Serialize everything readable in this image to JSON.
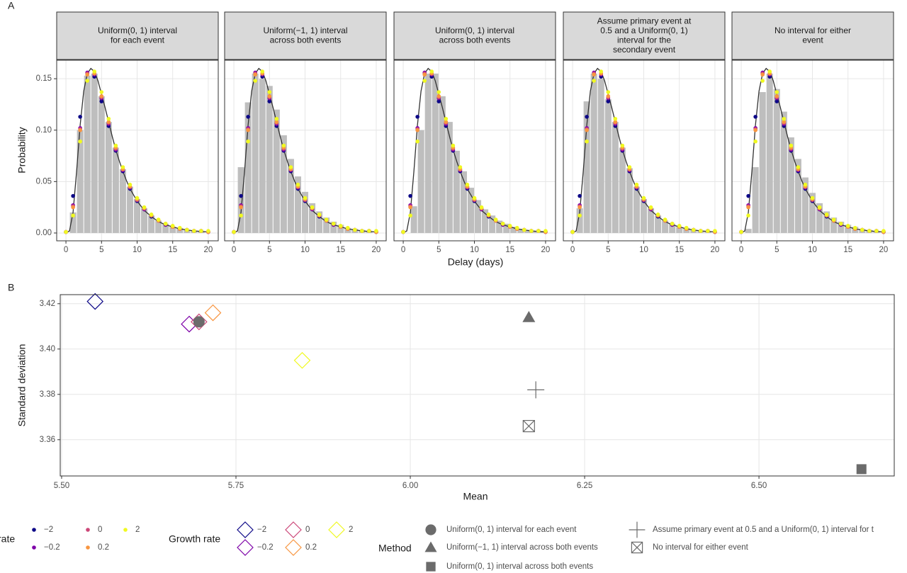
{
  "chart_data": [
    {
      "type": "facet_bar",
      "panel_label": "A",
      "ylabel": "Probability",
      "xlabel": "Delay (days)",
      "xlim": [
        -1.3,
        21.4
      ],
      "xticks": [
        0,
        5,
        10,
        15,
        20
      ],
      "ylim": [
        -0.0076,
        0.168
      ],
      "yticks": [
        {
          "value": 0,
          "label": "0.00"
        },
        0.05,
        {
          "value": 0.1,
          "label": "0.10"
        },
        0.15
      ],
      "grid": true,
      "bar_color": "#bebebe",
      "line_color": "#333333",
      "density_x": [
        0,
        0.5,
        1,
        1.5,
        2,
        2.5,
        3,
        3.5,
        4,
        4.5,
        5,
        5.5,
        6,
        6.5,
        7,
        7.5,
        8,
        8.5,
        9,
        9.5,
        10,
        11,
        12,
        13,
        14,
        15,
        16,
        17,
        18,
        19,
        20
      ],
      "density_values": [
        0,
        0.002,
        0.02,
        0.06,
        0.105,
        0.138,
        0.155,
        0.16,
        0.157,
        0.148,
        0.135,
        0.122,
        0.108,
        0.094,
        0.081,
        0.07,
        0.06,
        0.051,
        0.043,
        0.037,
        0.031,
        0.022,
        0.016,
        0.011,
        0.008,
        0.006,
        0.004,
        0.003,
        0.002,
        0.0015,
        0.001
      ],
      "point_x": [
        0,
        1,
        2,
        3,
        4,
        5,
        6,
        7,
        8,
        9,
        10,
        11,
        12,
        13,
        14,
        15,
        16,
        17,
        18,
        19,
        20
      ],
      "legend_title": "rate",
      "series": [
        {
          "name": "−2",
          "color": "#0d0887",
          "values": [
            0.001,
            0.036,
            0.113,
            0.155,
            0.152,
            0.128,
            0.104,
            0.08,
            0.06,
            0.043,
            0.031,
            0.023,
            0.016,
            0.012,
            0.008,
            0.006,
            0.004,
            0.003,
            0.002,
            0.002,
            0.001
          ]
        },
        {
          "name": "−0.2",
          "color": "#7e03a8",
          "values": [
            0.001,
            0.027,
            0.102,
            0.156,
            0.154,
            0.131,
            0.106,
            0.081,
            0.061,
            0.044,
            0.032,
            0.023,
            0.017,
            0.012,
            0.008,
            0.006,
            0.004,
            0.003,
            0.002,
            0.002,
            0.001
          ]
        },
        {
          "name": "0",
          "color": "#cc4778",
          "values": [
            0.001,
            0.026,
            0.101,
            0.155,
            0.155,
            0.132,
            0.107,
            0.082,
            0.062,
            0.045,
            0.032,
            0.024,
            0.017,
            0.012,
            0.009,
            0.006,
            0.004,
            0.003,
            0.002,
            0.002,
            0.001
          ]
        },
        {
          "name": "0.2",
          "color": "#f89540",
          "values": [
            0.001,
            0.025,
            0.1,
            0.154,
            0.155,
            0.133,
            0.108,
            0.083,
            0.062,
            0.045,
            0.033,
            0.024,
            0.017,
            0.012,
            0.009,
            0.006,
            0.004,
            0.003,
            0.002,
            0.002,
            0.001
          ]
        },
        {
          "name": "2",
          "color": "#f0f921",
          "values": [
            0.001,
            0.017,
            0.089,
            0.148,
            0.157,
            0.137,
            0.111,
            0.085,
            0.064,
            0.047,
            0.034,
            0.025,
            0.018,
            0.013,
            0.009,
            0.007,
            0.005,
            0.003,
            0.002,
            0.002,
            0.002
          ]
        }
      ],
      "facets": [
        {
          "title": [
            "Uniform(0, 1) interval",
            "for each event"
          ],
          "x": [
            1,
            2,
            3,
            4,
            5,
            6,
            7,
            8,
            9,
            10,
            11,
            12,
            13,
            14,
            15,
            16,
            17,
            18,
            19
          ],
          "values": [
            0.02,
            0.1,
            0.153,
            0.155,
            0.133,
            0.108,
            0.083,
            0.062,
            0.045,
            0.033,
            0.024,
            0.017,
            0.012,
            0.009,
            0.006,
            0.005,
            0.003,
            0.002,
            0.002
          ]
        },
        {
          "title": [
            "Uniform(−1, 1) interval",
            "across both events"
          ],
          "x": [
            1,
            2,
            3,
            4,
            5,
            6,
            7,
            8,
            9,
            10,
            11,
            12,
            13,
            14,
            15,
            16,
            17,
            18,
            19
          ],
          "values": [
            0.064,
            0.127,
            0.155,
            0.15,
            0.143,
            0.12,
            0.095,
            0.072,
            0.055,
            0.04,
            0.029,
            0.021,
            0.015,
            0.011,
            0.008,
            0.005,
            0.004,
            0.003,
            0.002
          ]
        },
        {
          "title": [
            "Uniform(0, 1) interval",
            "across both events"
          ],
          "x": [
            1.5,
            2.5,
            3.5,
            4.5,
            5.5,
            6.5,
            7.5,
            8.5,
            9.5,
            10.5,
            11.5,
            12.5,
            13.5,
            14.5,
            15.5,
            16.5,
            17.5,
            18.5,
            19.5
          ],
          "values": [
            0.026,
            0.1,
            0.155,
            0.155,
            0.133,
            0.108,
            0.08,
            0.06,
            0.044,
            0.032,
            0.023,
            0.017,
            0.012,
            0.009,
            0.006,
            0.004,
            0.003,
            0.002,
            0.002
          ]
        },
        {
          "title": [
            "Assume primary event at",
            "0.5 and a Uniform(0, 1)",
            "interval for the",
            "secondary event"
          ],
          "x": [
            1,
            2,
            3,
            4,
            5,
            6,
            7,
            8,
            9,
            10,
            11,
            12,
            13,
            14,
            15,
            16,
            17,
            18,
            19
          ],
          "values": [
            0.024,
            0.128,
            0.155,
            0.15,
            0.13,
            0.108,
            0.083,
            0.063,
            0.045,
            0.033,
            0.024,
            0.017,
            0.012,
            0.009,
            0.006,
            0.005,
            0.003,
            0.002,
            0.002
          ]
        },
        {
          "title": [
            "No interval for either",
            "event"
          ],
          "x": [
            1,
            2,
            3,
            4,
            5,
            6,
            7,
            8,
            9,
            10,
            11,
            12,
            13,
            14,
            15,
            16,
            17,
            18,
            19
          ],
          "values": [
            0.004,
            0.064,
            0.137,
            0.155,
            0.14,
            0.118,
            0.093,
            0.072,
            0.054,
            0.039,
            0.029,
            0.021,
            0.015,
            0.011,
            0.008,
            0.006,
            0.004,
            0.003,
            0.002
          ]
        }
      ]
    },
    {
      "type": "scatter",
      "panel_label": "B",
      "xlabel": "Mean",
      "ylabel": "Standard deviation",
      "xlim": [
        5.498,
        6.694
      ],
      "xticks": [
        {
          "value": 5.5,
          "label": "5.50"
        },
        5.75,
        {
          "value": 6,
          "label": "6.00"
        },
        6.25,
        {
          "value": 6.5,
          "label": "6.50"
        }
      ],
      "ylim": [
        3.344,
        3.424
      ],
      "yticks": [
        3.36,
        3.38,
        {
          "value": 3.4,
          "label": "3.40"
        },
        3.42
      ],
      "grid": true,
      "legend_title": "Growth rate",
      "series": [
        {
          "name": "−2",
          "color": "#0d0887",
          "x": [
            5.548
          ],
          "values": [
            3.421
          ]
        },
        {
          "name": "−0.2",
          "color": "#7e03a8",
          "x": [
            5.683
          ],
          "values": [
            3.411
          ]
        },
        {
          "name": "0",
          "color": "#cc4778",
          "x": [
            5.697
          ],
          "values": [
            3.412
          ]
        },
        {
          "name": "0.2",
          "color": "#f89540",
          "x": [
            5.717
          ],
          "values": [
            3.416
          ]
        },
        {
          "name": "2",
          "color": "#f0f921",
          "x": [
            5.845
          ],
          "values": [
            3.395
          ]
        }
      ],
      "method_legend_title": "Method",
      "method_color": "#6b6b6b",
      "methods": [
        {
          "name": "Uniform(0, 1) interval for each event",
          "shape": "circle",
          "x": [
            5.697
          ],
          "values": [
            3.412
          ]
        },
        {
          "name": "Uniform(−1, 1) interval across both events",
          "shape": "triangle",
          "x": [
            6.17
          ],
          "values": [
            3.414
          ]
        },
        {
          "name": "Uniform(0, 1) interval across both events",
          "shape": "square",
          "x": [
            6.647
          ],
          "values": [
            3.347
          ]
        },
        {
          "name": "Assume primary event at 0.5 and a Uniform(0, 1) interval for t",
          "shape": "plus",
          "x": [
            6.18
          ],
          "values": [
            3.382
          ]
        },
        {
          "name": "No interval for either event",
          "shape": "boxx",
          "x": [
            6.17
          ],
          "values": [
            3.366
          ]
        }
      ]
    }
  ]
}
